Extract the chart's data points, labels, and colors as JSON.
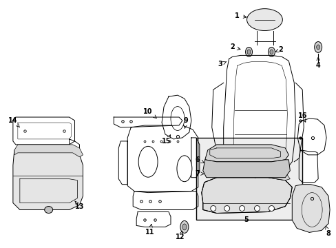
{
  "background_color": "#ffffff",
  "line_color": "#000000",
  "fig_width": 4.89,
  "fig_height": 3.6,
  "dpi": 100,
  "label_fs": 7.0,
  "lw": 0.7
}
